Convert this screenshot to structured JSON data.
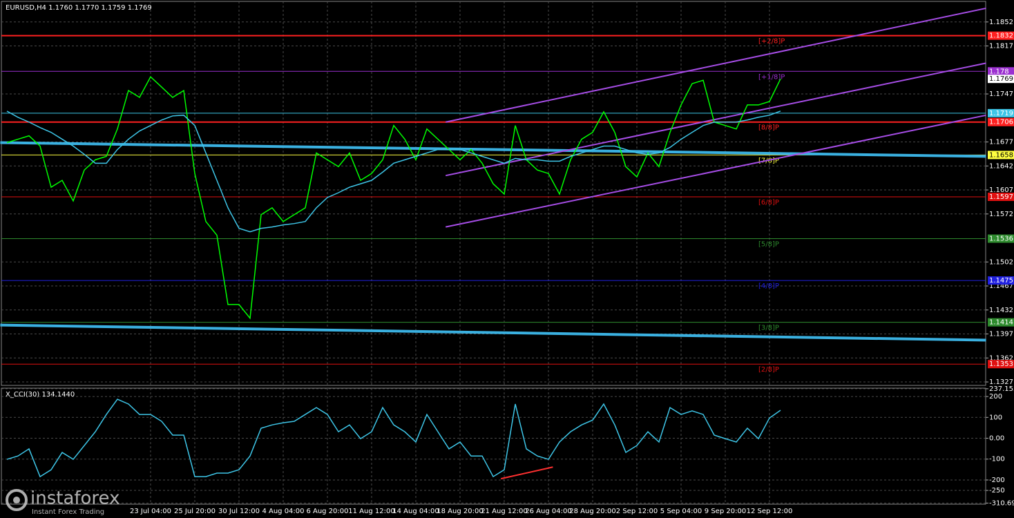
{
  "chart_data": [
    {
      "type": "line",
      "title": "EURUSD,H4  1.1760 1.1770 1.1759 1.1769",
      "categories": [
        null,
        null,
        null,
        null,
        null,
        null,
        null,
        null,
        null,
        null,
        null,
        null,
        null,
        "23 Jul 04:00",
        null,
        null,
        null,
        "25 Jul 20:00",
        null,
        null,
        null,
        "30 Jul 12:00",
        null,
        null,
        null,
        "4 Aug 04:00",
        null,
        null,
        null,
        "6 Aug 20:00",
        null,
        null,
        null,
        "11 Aug 12:00",
        null,
        null,
        null,
        "14 Aug 04:00",
        null,
        null,
        null,
        "18 Aug 20:00",
        null,
        null,
        null,
        "21 Aug 12:00",
        null,
        null,
        null,
        "26 Aug 04:00",
        null,
        null,
        null,
        "28 Aug 20:00",
        null,
        null,
        null,
        "2 Sep 12:00",
        null,
        null,
        null,
        "5 Sep 04:00",
        null,
        null,
        null,
        "9 Sep 20:00",
        null,
        null,
        null,
        "12 Sep 12:00",
        null
      ],
      "series": [
        {
          "color": "#00ff00",
          "values": [
            1.1676,
            1.1681,
            1.1686,
            1.1671,
            1.1611,
            1.1621,
            1.1591,
            1.1636,
            1.1651,
            1.1656,
            1.1696,
            1.1752,
            1.1742,
            1.1772,
            1.1757,
            1.1742,
            1.1752,
            1.1631,
            1.1561,
            1.1541,
            1.144,
            1.144,
            1.142,
            1.1571,
            1.1581,
            1.1561,
            1.1571,
            1.1581,
            1.1661,
            1.1651,
            1.1641,
            1.1661,
            1.1621,
            1.1631,
            1.1651,
            1.1701,
            1.1681,
            1.1651,
            1.1696,
            1.1681,
            1.1666,
            1.1651,
            1.1666,
            1.1646,
            1.1616,
            1.1601,
            1.1701,
            1.1651,
            1.1636,
            1.1631,
            1.1601,
            1.1651,
            1.1681,
            1.1691,
            1.1721,
            1.1691,
            1.1641,
            1.1626,
            1.1661,
            1.1641,
            1.1691,
            1.1731,
            1.1762,
            1.1767,
            1.1706,
            1.1701,
            1.1696,
            1.1731,
            1.1731,
            1.1736,
            1.1769
          ]
        },
        {
          "color": "#3ec6e8",
          "values": [
            1.1722,
            1.1713,
            1.1706,
            1.1698,
            1.1691,
            1.1681,
            1.1671,
            1.1659,
            1.1646,
            1.1646,
            1.1666,
            1.1681,
            1.1693,
            1.1701,
            1.1709,
            1.1715,
            1.1716,
            1.1701,
            1.1661,
            1.1621,
            1.1581,
            1.1551,
            1.1546,
            1.1551,
            1.1553,
            1.1556,
            1.1558,
            1.1561,
            1.1581,
            1.1596,
            1.1603,
            1.1611,
            1.1616,
            1.1621,
            1.1633,
            1.1646,
            1.1651,
            1.1656,
            1.1661,
            1.1666,
            1.1666,
            1.1666,
            1.1661,
            1.1656,
            1.1651,
            1.1646,
            1.1653,
            1.1651,
            1.1651,
            1.1649,
            1.1649,
            1.1656,
            1.1661,
            1.1666,
            1.1671,
            1.1671,
            1.1666,
            1.1661,
            1.1659,
            1.1661,
            1.1669,
            1.1681,
            1.1691,
            1.1701,
            1.1706,
            1.1706,
            1.1706,
            1.1709,
            1.1713,
            1.1716,
            1.1722
          ]
        }
      ],
      "ylim": [
        1.1322,
        1.1882
      ],
      "yticks": [
        1.1852,
        1.1817,
        1.1747,
        1.1677,
        1.1642,
        1.1607,
        1.1572,
        1.1502,
        1.1467,
        1.1432,
        1.1397,
        1.1362,
        1.1327
      ],
      "grid": true,
      "levels": [
        {
          "value": 1.1832,
          "label": "[+2/8]P",
          "color": "#ff2020"
        },
        {
          "value": 1.178,
          "label": "[+1/8]P",
          "color": "#9b30d0"
        },
        {
          "value": 1.1719,
          "color": "#3ec6e8"
        },
        {
          "value": 1.1706,
          "label": "[8/8]P",
          "color": "#ff2020"
        },
        {
          "value": 1.1658,
          "label": "[7/8]P",
          "color": "#ffff40"
        },
        {
          "value": 1.1597,
          "label": "[6/8]P",
          "color": "#e01010"
        },
        {
          "value": 1.1536,
          "label": "[5/8]P",
          "color": "#2e8b2e"
        },
        {
          "value": 1.1475,
          "label": "[4/8]P",
          "color": "#2020e0"
        },
        {
          "value": 1.1414,
          "label": "[3/8]P",
          "color": "#2e8b2e"
        },
        {
          "value": 1.1353,
          "label": "[2/8]P",
          "color": "#e01010"
        }
      ],
      "trend_lines": [
        {
          "x": [
            -0.6,
            88.6
          ],
          "y": [
            1.1676,
            1.1656
          ],
          "color": "#3ab0e0",
          "width": 4
        },
        {
          "x": [
            -0.6,
            88.6
          ],
          "y": [
            1.141,
            1.1388
          ],
          "color": "#3ab0e0",
          "width": 4
        },
        {
          "x": [
            39.7,
            88.6
          ],
          "y": [
            1.1706,
            1.1872
          ],
          "color": "#a64de6",
          "width": 2
        },
        {
          "x": [
            39.7,
            88.6
          ],
          "y": [
            1.1628,
            1.1792
          ],
          "color": "#a64de6",
          "width": 2
        },
        {
          "x": [
            39.7,
            88.6
          ],
          "y": [
            1.1553,
            1.1716
          ],
          "color": "#a64de6",
          "width": 2
        }
      ],
      "last_price": 1.1769
    },
    {
      "type": "line",
      "title": "X_CCI(30) 134.1440",
      "series": [
        {
          "color": "#3ec6e8",
          "values": [
            -101,
            -85,
            -51,
            -184,
            -151,
            -68,
            -101,
            -35,
            31,
            114,
            187,
            164,
            114,
            114,
            81,
            15,
            15,
            -184,
            -184,
            -167,
            -167,
            -151,
            -85,
            48,
            64,
            74,
            81,
            114,
            147,
            114,
            31,
            64,
            -2,
            31,
            147,
            64,
            31,
            -18,
            114,
            31,
            -51,
            -18,
            -85,
            -85,
            -184,
            -151,
            164,
            -51,
            -85,
            -101,
            -18,
            31,
            64,
            87,
            164,
            64,
            -68,
            -35,
            31,
            -18,
            147,
            114,
            131,
            114,
            15,
            -2,
            -18,
            48,
            -2,
            97,
            134.144
          ]
        }
      ],
      "ylim": [
        -316,
        240
      ],
      "yticks": [
        237.1533,
        200,
        100,
        {
          "value": 0,
          "label": "0.00"
        },
        -100,
        -200,
        -250,
        -310.6911
      ],
      "grid": true,
      "trend_lines": [
        {
          "x": [
            44.7,
            49.4
          ],
          "y": [
            -194,
            -138
          ],
          "color": "#ff3030",
          "width": 2
        }
      ]
    }
  ],
  "watermark": {
    "brand": "instaforex",
    "tagline": "Instant Forex Trading"
  }
}
